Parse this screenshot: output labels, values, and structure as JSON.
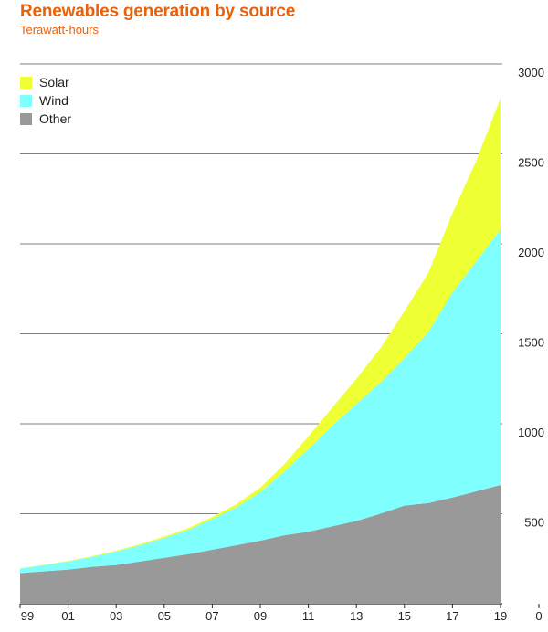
{
  "chart_data": {
    "type": "area",
    "stacked": true,
    "title": "Renewables generation by source",
    "subtitle": "Terawatt-hours",
    "x": [
      1999,
      2000,
      2001,
      2002,
      2003,
      2004,
      2005,
      2006,
      2007,
      2008,
      2009,
      2010,
      2011,
      2012,
      2013,
      2014,
      2015,
      2016,
      2017,
      2018,
      2019
    ],
    "x_tick_labels": [
      "99",
      "01",
      "03",
      "05",
      "07",
      "09",
      "11",
      "13",
      "15",
      "17",
      "19",
      "0"
    ],
    "y_tick_labels": [
      "500",
      "1000",
      "1500",
      "2000",
      "2500",
      "3000"
    ],
    "ylim": [
      0,
      3000
    ],
    "grid": true,
    "legend_position": "top-left",
    "series": [
      {
        "name": "Other",
        "color": "#999999",
        "values": [
          170,
          180,
          190,
          205,
          215,
          235,
          255,
          275,
          300,
          325,
          350,
          380,
          400,
          430,
          460,
          500,
          545,
          560,
          590,
          625,
          660
        ]
      },
      {
        "name": "Wind",
        "color": "#80ffff",
        "values": [
          25,
          35,
          45,
          55,
          75,
          90,
          110,
          135,
          170,
          210,
          270,
          355,
          460,
          560,
          650,
          730,
          820,
          950,
          1140,
          1280,
          1420
        ]
      },
      {
        "name": "Solar",
        "color": "#eeff33",
        "values": [
          1,
          2,
          3,
          4,
          5,
          6,
          8,
          10,
          12,
          18,
          25,
          40,
          70,
          100,
          140,
          190,
          260,
          330,
          440,
          560,
          730
        ]
      }
    ]
  }
}
